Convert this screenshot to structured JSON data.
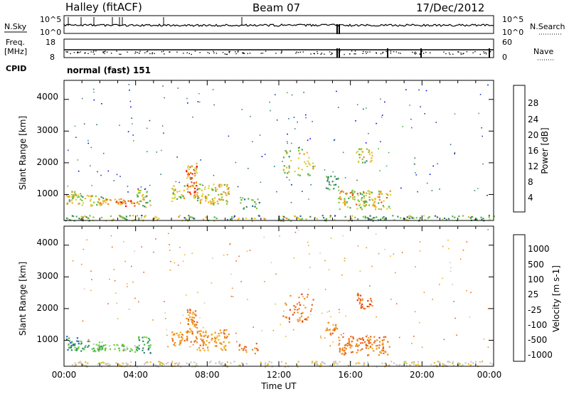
{
  "header": {
    "station": "Halley (fitACF)",
    "beam": "Beam 07",
    "date": "17/Dec/2012"
  },
  "top_panels": {
    "nsky_label": "N.Sky",
    "nsearch_label": "N.Search",
    "nsky_ticks": [
      "10^5",
      "10^0"
    ],
    "nsearch_ticks": [
      "10^5",
      "10^0"
    ],
    "freq_label_line1": "Freq.",
    "freq_label_line2": "[MHz]",
    "freq_ticks": [
      "18",
      "8"
    ],
    "nave_label": "Nave",
    "nave_ticks": [
      "60",
      "0"
    ],
    "cpid_label": "CPID",
    "cpid_text": "normal (fast) 151"
  },
  "chart_data": [
    {
      "type": "heatmap",
      "name": "power-panel",
      "ylabel": "Slant Range [km]",
      "yticks": [
        "4000",
        "3000",
        "2000",
        "1000"
      ],
      "ylim": [
        180,
        4600
      ],
      "xlim_hours": [
        0,
        24
      ],
      "colorbar_label": "Power [dB]",
      "colorbar_ticks": [
        "28",
        "24",
        "20",
        "16",
        "12",
        "8",
        "4"
      ],
      "colorbar_colors": [
        "#0000ff",
        "#1f3fa8",
        "#2f6d88",
        "#3b8a6a",
        "#46b04a",
        "#7fc63a",
        "#d8d23a",
        "#f2b21e",
        "#f08a1a",
        "#e85a14",
        "#e02b10",
        "#ff0000"
      ],
      "scatter_regions": [
        {
          "t0": 0.1,
          "t1": 0.8,
          "r0": 700,
          "r1": 1150,
          "dens": 0.85,
          "vmin": 0.35,
          "vmax": 0.75
        },
        {
          "t0": 0.8,
          "t1": 2.3,
          "r0": 650,
          "r1": 1000,
          "dens": 0.5,
          "vmin": 0.3,
          "vmax": 0.7
        },
        {
          "t0": 1.8,
          "t1": 3.3,
          "r0": 700,
          "r1": 900,
          "dens": 0.7,
          "vmin": 0.55,
          "vmax": 0.85
        },
        {
          "t0": 3.0,
          "t1": 4.2,
          "r0": 650,
          "r1": 850,
          "dens": 0.7,
          "vmin": 0.6,
          "vmax": 1.0
        },
        {
          "t0": 4.0,
          "t1": 4.8,
          "r0": 600,
          "r1": 1150,
          "dens": 0.5,
          "vmin": 0.3,
          "vmax": 0.7
        },
        {
          "t0": 6.0,
          "t1": 6.7,
          "r0": 800,
          "r1": 1300,
          "dens": 0.6,
          "vmin": 0.35,
          "vmax": 0.7
        },
        {
          "t0": 6.8,
          "t1": 7.4,
          "r0": 900,
          "r1": 2000,
          "dens": 0.7,
          "vmin": 0.5,
          "vmax": 0.95
        },
        {
          "t0": 7.4,
          "t1": 9.2,
          "r0": 700,
          "r1": 1350,
          "dens": 0.55,
          "vmin": 0.4,
          "vmax": 0.75
        },
        {
          "t0": 9.7,
          "t1": 10.9,
          "r0": 550,
          "r1": 950,
          "dens": 0.3,
          "vmin": 0.2,
          "vmax": 0.5
        },
        {
          "t0": 12.2,
          "t1": 14.0,
          "r0": 1600,
          "r1": 2500,
          "dens": 0.22,
          "vmin": 0.3,
          "vmax": 0.7
        },
        {
          "t0": 14.6,
          "t1": 15.3,
          "r0": 1150,
          "r1": 1600,
          "dens": 0.55,
          "vmin": 0.2,
          "vmax": 0.5
        },
        {
          "t0": 15.3,
          "t1": 18.2,
          "r0": 550,
          "r1": 1150,
          "dens": 0.55,
          "vmin": 0.35,
          "vmax": 0.8
        },
        {
          "t0": 16.3,
          "t1": 17.2,
          "r0": 2000,
          "r1": 2500,
          "dens": 0.5,
          "vmin": 0.3,
          "vmax": 0.7
        },
        {
          "t0": 0.0,
          "t1": 24.0,
          "r0": 190,
          "r1": 360,
          "dens": 0.45,
          "vmin": 0.15,
          "vmax": 0.7
        }
      ]
    },
    {
      "type": "heatmap",
      "name": "velocity-panel",
      "ylabel": "Slant Range [km]",
      "yticks": [
        "4000",
        "3000",
        "2000",
        "1000"
      ],
      "ylim": [
        180,
        4600
      ],
      "xlim_hours": [
        0,
        24
      ],
      "xlabel": "Time UT",
      "xticks": [
        "00:00",
        "04:00",
        "08:00",
        "12:00",
        "16:00",
        "20:00",
        "00:00"
      ],
      "colorbar_label": "Velocity [m s-1]",
      "colorbar_ticks": [
        "1000",
        "500",
        "100",
        "25",
        "-25",
        "-100",
        "-500",
        "-1000"
      ],
      "colorbar_colors": [
        "#1e3cc8",
        "#2a64a8",
        "#2f8c6a",
        "#3cb44a",
        "#70cc3a",
        "#c8c8c8",
        "#f0b41e",
        "#f08c1e",
        "#e8641a",
        "#e03c14",
        "#ff0000"
      ],
      "scatter_regions": [
        {
          "t0": 0.1,
          "t1": 0.8,
          "r0": 700,
          "r1": 1150,
          "dens": 0.85,
          "vmin": 0.1,
          "vmax": 0.45
        },
        {
          "t0": 0.8,
          "t1": 2.3,
          "r0": 650,
          "r1": 1000,
          "dens": 0.5,
          "vmin": 0.2,
          "vmax": 0.5
        },
        {
          "t0": 1.8,
          "t1": 3.3,
          "r0": 700,
          "r1": 900,
          "dens": 0.7,
          "vmin": 0.3,
          "vmax": 0.5
        },
        {
          "t0": 3.0,
          "t1": 4.2,
          "r0": 650,
          "r1": 850,
          "dens": 0.7,
          "vmin": 0.3,
          "vmax": 0.55
        },
        {
          "t0": 4.0,
          "t1": 4.8,
          "r0": 600,
          "r1": 1150,
          "dens": 0.5,
          "vmin": 0.1,
          "vmax": 0.4
        },
        {
          "t0": 6.0,
          "t1": 6.7,
          "r0": 800,
          "r1": 1300,
          "dens": 0.6,
          "vmin": 0.6,
          "vmax": 0.75
        },
        {
          "t0": 6.8,
          "t1": 7.4,
          "r0": 900,
          "r1": 2000,
          "dens": 0.7,
          "vmin": 0.6,
          "vmax": 0.78
        },
        {
          "t0": 7.4,
          "t1": 9.2,
          "r0": 700,
          "r1": 1350,
          "dens": 0.55,
          "vmin": 0.58,
          "vmax": 0.75
        },
        {
          "t0": 9.7,
          "t1": 10.9,
          "r0": 550,
          "r1": 950,
          "dens": 0.3,
          "vmin": 0.6,
          "vmax": 0.8
        },
        {
          "t0": 12.2,
          "t1": 14.0,
          "r0": 1600,
          "r1": 2500,
          "dens": 0.22,
          "vmin": 0.65,
          "vmax": 0.85
        },
        {
          "t0": 14.6,
          "t1": 15.3,
          "r0": 1150,
          "r1": 1600,
          "dens": 0.55,
          "vmin": 0.6,
          "vmax": 0.78
        },
        {
          "t0": 15.3,
          "t1": 18.2,
          "r0": 550,
          "r1": 1150,
          "dens": 0.55,
          "vmin": 0.62,
          "vmax": 0.82
        },
        {
          "t0": 16.3,
          "t1": 17.2,
          "r0": 2000,
          "r1": 2500,
          "dens": 0.5,
          "vmin": 0.7,
          "vmax": 0.88
        },
        {
          "t0": 0.0,
          "t1": 24.0,
          "r0": 190,
          "r1": 360,
          "dens": 0.45,
          "vmin": 0.45,
          "vmax": 0.6
        }
      ]
    }
  ]
}
